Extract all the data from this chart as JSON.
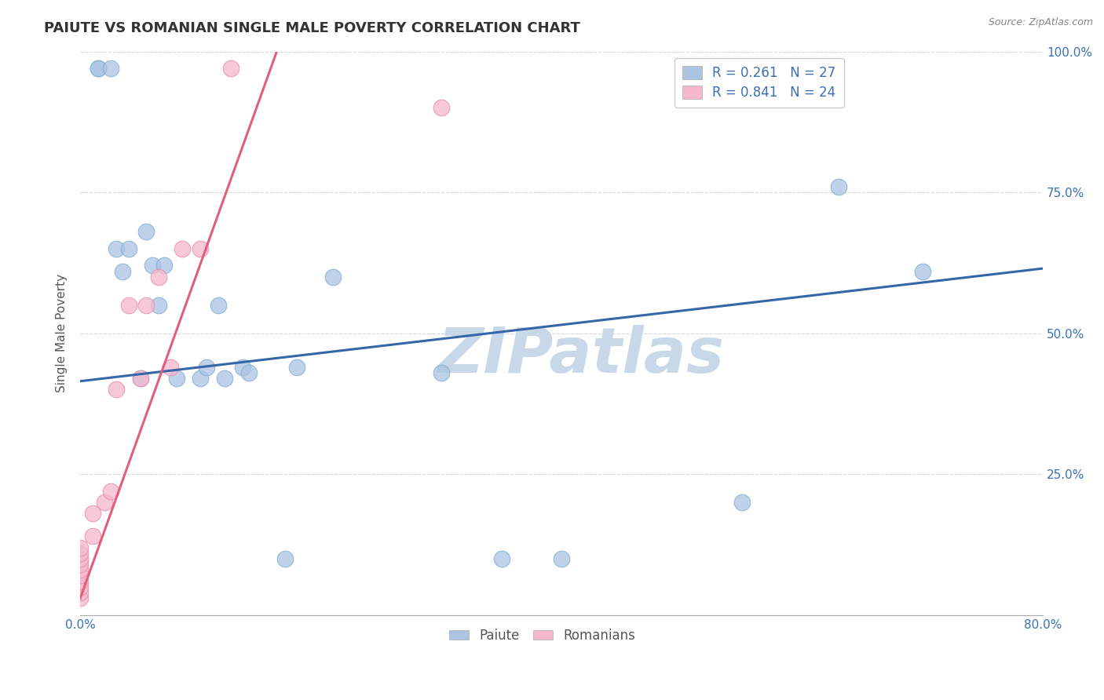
{
  "title": "PAIUTE VS ROMANIAN SINGLE MALE POVERTY CORRELATION CHART",
  "source": "Source: ZipAtlas.com",
  "ylabel": "Single Male Poverty",
  "paiute_R": 0.261,
  "paiute_N": 27,
  "romanian_R": 0.841,
  "romanian_N": 24,
  "paiute_color": "#aac4e2",
  "paiute_edge_color": "#7aaad4",
  "paiute_line_color": "#3566a8",
  "romanian_color": "#f5b8cc",
  "romanian_edge_color": "#e888aa",
  "romanian_line_color": "#e0607a",
  "background_color": "#ffffff",
  "watermark_text": "ZIPatlas",
  "watermark_color": "#c8d8e8",
  "xlim": [
    0.0,
    0.8
  ],
  "ylim": [
    0.0,
    1.0
  ],
  "xticks": [
    0.0,
    0.2,
    0.4,
    0.6,
    0.8
  ],
  "yticks": [
    0.0,
    0.25,
    0.5,
    0.75,
    1.0
  ],
  "ytick_labels": [
    "",
    "25.0%",
    "50.0%",
    "75.0%",
    "100.0%"
  ],
  "xtick_labels": [
    "0.0%",
    "",
    "",
    "",
    "80.0%"
  ],
  "title_fontsize": 13,
  "axis_label_fontsize": 11,
  "tick_fontsize": 11,
  "legend_fontsize": 12,
  "paiute_x": [
    0.015,
    0.015,
    0.025,
    0.03,
    0.035,
    0.04,
    0.05,
    0.055,
    0.06,
    0.065,
    0.07,
    0.08,
    0.1,
    0.105,
    0.115,
    0.12,
    0.135,
    0.14,
    0.17,
    0.18,
    0.21,
    0.3,
    0.35,
    0.4,
    0.55,
    0.63,
    0.7
  ],
  "paiute_y": [
    0.97,
    0.97,
    0.97,
    0.65,
    0.61,
    0.65,
    0.42,
    0.68,
    0.62,
    0.55,
    0.62,
    0.42,
    0.42,
    0.44,
    0.55,
    0.42,
    0.44,
    0.43,
    0.1,
    0.44,
    0.6,
    0.43,
    0.1,
    0.1,
    0.2,
    0.76,
    0.61
  ],
  "romanian_x": [
    0.0,
    0.0,
    0.0,
    0.0,
    0.0,
    0.0,
    0.0,
    0.0,
    0.0,
    0.0,
    0.01,
    0.01,
    0.02,
    0.025,
    0.03,
    0.04,
    0.05,
    0.055,
    0.065,
    0.075,
    0.085,
    0.1,
    0.125,
    0.3
  ],
  "romanian_y": [
    0.03,
    0.04,
    0.05,
    0.06,
    0.07,
    0.08,
    0.09,
    0.1,
    0.11,
    0.12,
    0.14,
    0.18,
    0.2,
    0.22,
    0.4,
    0.55,
    0.42,
    0.55,
    0.6,
    0.44,
    0.65,
    0.65,
    0.97,
    0.9
  ],
  "paiute_line_x": [
    0.0,
    0.8
  ],
  "paiute_line_y": [
    0.415,
    0.615
  ],
  "romanian_line_x": [
    0.0,
    0.165
  ],
  "romanian_line_y": [
    0.03,
    1.01
  ]
}
